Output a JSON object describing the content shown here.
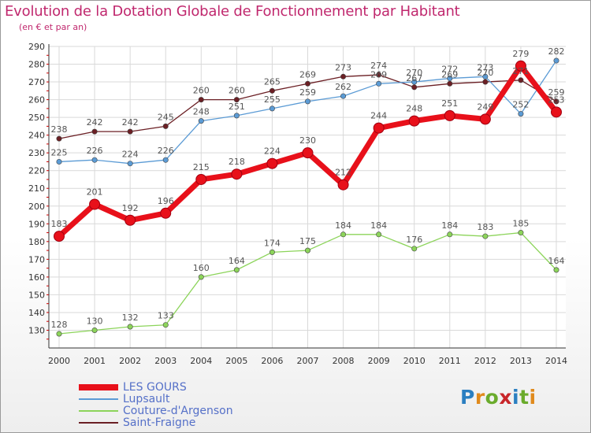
{
  "title": "Evolution de la Dotation Globale de Fonctionnement par Habitant",
  "subtitle": "(en € et par an)",
  "logo": {
    "text": "Proxiti",
    "letters": [
      "P",
      "r",
      "o",
      "x",
      "i",
      "t",
      "i"
    ],
    "colors": [
      "#2b7fc1",
      "#e08a1c",
      "#6aab2c",
      "#c8262a",
      "#2b7fc1",
      "#6aab2c",
      "#e08a1c"
    ]
  },
  "chart_data": {
    "type": "line",
    "title": "Evolution de la Dotation Globale de Fonctionnement par Habitant",
    "subtitle": "(en € et par an)",
    "x": [
      "2000",
      "2001",
      "2002",
      "2003",
      "2004",
      "2005",
      "2006",
      "2007",
      "2008",
      "2009",
      "2010",
      "2011",
      "2012",
      "2013",
      "2014"
    ],
    "yticks": [
      "130",
      "140",
      "150",
      "160",
      "170",
      "180",
      "190",
      "200",
      "210",
      "220",
      "230",
      "240",
      "250",
      "260",
      "270",
      "280",
      "290"
    ],
    "ylim": [
      120,
      290
    ],
    "grid": true,
    "series": [
      {
        "name": "Saint-Fraigne",
        "color": "#6b1f24",
        "values": [
          238,
          242,
          242,
          245,
          260,
          260,
          265,
          269,
          273,
          274,
          267,
          269,
          270,
          271,
          259
        ],
        "labels": [
          "238",
          "242",
          "242",
          "245",
          "260",
          "260",
          "265",
          "269",
          "273",
          "274",
          "267",
          "269",
          "270",
          "271",
          "259"
        ]
      },
      {
        "name": "Lupsault",
        "color": "#5b9bd5",
        "values": [
          225,
          226,
          224,
          226,
          248,
          251,
          255,
          259,
          262,
          269,
          270,
          272,
          273,
          252,
          282
        ],
        "labels": [
          "225",
          "226",
          "224",
          "226",
          "248",
          "251",
          "255",
          "259",
          "262",
          "269",
          "270",
          "272",
          "273",
          "252",
          "282"
        ]
      },
      {
        "name": "Couture-d'Argenson",
        "color": "#8cd45a",
        "values": [
          128,
          130,
          132,
          133,
          160,
          164,
          174,
          175,
          184,
          184,
          176,
          184,
          183,
          185,
          164
        ],
        "labels": [
          "128",
          "130",
          "132",
          "133",
          "160",
          "164",
          "174",
          "175",
          "184",
          "184",
          "176",
          "184",
          "183",
          "185",
          "164"
        ]
      },
      {
        "name": "LES GOURS",
        "color": "#e8101a",
        "values": [
          183,
          201,
          192,
          196,
          215,
          218,
          224,
          230,
          212,
          244,
          248,
          251,
          249,
          279,
          253
        ],
        "labels": [
          "183",
          "201",
          "192",
          "196",
          "215",
          "218",
          "224",
          "230",
          "212",
          "244",
          "248",
          "251",
          "249",
          "279",
          "253"
        ]
      }
    ],
    "legend": {
      "placement": "bottom-left",
      "items": [
        "LES GOURS",
        "Lupsault",
        "Couture-d'Argenson",
        "Saint-Fraigne"
      ]
    }
  }
}
